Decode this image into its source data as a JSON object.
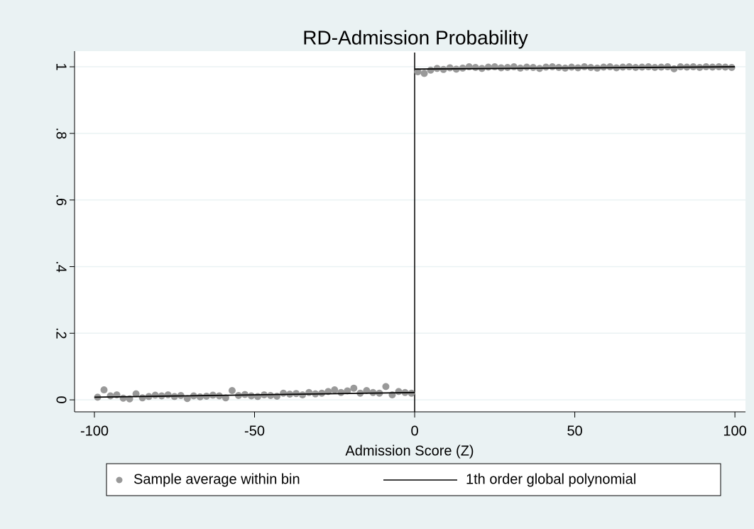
{
  "chart_data": {
    "type": "scatter",
    "title": "RD-Admission Probability",
    "x_label": "Admission Score (Z)",
    "xlim": [
      -106.2,
      103.3
    ],
    "ylim": [
      -0.036,
      1.047
    ],
    "xticks": [
      -100,
      -50,
      0,
      50,
      100
    ],
    "yticks": [
      0,
      {
        "value": 0.2,
        "label": ".2"
      },
      {
        "value": 0.4,
        "label": ".4"
      },
      {
        "value": 0.6,
        "label": ".6"
      },
      {
        "value": 0.8,
        "label": ".8"
      },
      1
    ],
    "grid": true,
    "xline": 0,
    "legend": "bottom",
    "series": [
      {
        "name": "Sample average within bin",
        "type": "scatter",
        "color": "#999999",
        "x": [
          -99,
          -97,
          -95,
          -93,
          -91,
          -89,
          -87,
          -85,
          -83,
          -81,
          -79,
          -77,
          -75,
          -73,
          -71,
          -69,
          -67,
          -65,
          -63,
          -61,
          -59,
          -57,
          -55,
          -53,
          -51,
          -49,
          -47,
          -45,
          -43,
          -41,
          -39,
          -37,
          -35,
          -33,
          -31,
          -29,
          -27,
          -25,
          -23,
          -21,
          -19,
          -17,
          -15,
          -13,
          -11,
          -9,
          -7,
          -5,
          -3,
          -1,
          1,
          3,
          5,
          7,
          9,
          11,
          13,
          15,
          17,
          19,
          21,
          23,
          25,
          27,
          29,
          31,
          33,
          35,
          37,
          39,
          41,
          43,
          45,
          47,
          49,
          51,
          53,
          55,
          57,
          59,
          61,
          63,
          65,
          67,
          69,
          71,
          73,
          75,
          77,
          79,
          81,
          83,
          85,
          87,
          89,
          91,
          93,
          95,
          97,
          99
        ],
        "values": [
          0.008,
          0.03,
          0.012,
          0.015,
          0.005,
          0.003,
          0.018,
          0.006,
          0.01,
          0.014,
          0.012,
          0.015,
          0.01,
          0.013,
          0.004,
          0.012,
          0.009,
          0.011,
          0.014,
          0.012,
          0.006,
          0.028,
          0.013,
          0.016,
          0.012,
          0.01,
          0.015,
          0.013,
          0.011,
          0.02,
          0.017,
          0.019,
          0.015,
          0.022,
          0.018,
          0.02,
          0.025,
          0.03,
          0.022,
          0.027,
          0.035,
          0.02,
          0.028,
          0.022,
          0.02,
          0.04,
          0.015,
          0.025,
          0.022,
          0.02,
          0.985,
          0.98,
          0.99,
          0.995,
          0.992,
          0.997,
          0.993,
          0.996,
          1.0,
          0.998,
          0.995,
          0.999,
          1.0,
          0.997,
          0.998,
          1.0,
          0.996,
          0.999,
          0.998,
          0.995,
          0.999,
          1.0,
          0.998,
          0.996,
          0.999,
          0.997,
          1.0,
          0.998,
          0.996,
          0.999,
          1.0,
          0.997,
          0.999,
          1.0,
          0.998,
          0.999,
          1.0,
          0.998,
          0.999,
          1.0,
          0.994,
          1.0,
          0.999,
          1.0,
          0.998,
          1.0,
          0.999,
          1.0,
          0.999,
          0.998
        ]
      },
      {
        "name": "1th order global polynomial",
        "type": "line",
        "color": "#000000",
        "x": [
          -100,
          0,
          null,
          0,
          100
        ],
        "values": [
          0.008,
          0.022,
          null,
          0.993,
          1.0
        ]
      }
    ]
  }
}
